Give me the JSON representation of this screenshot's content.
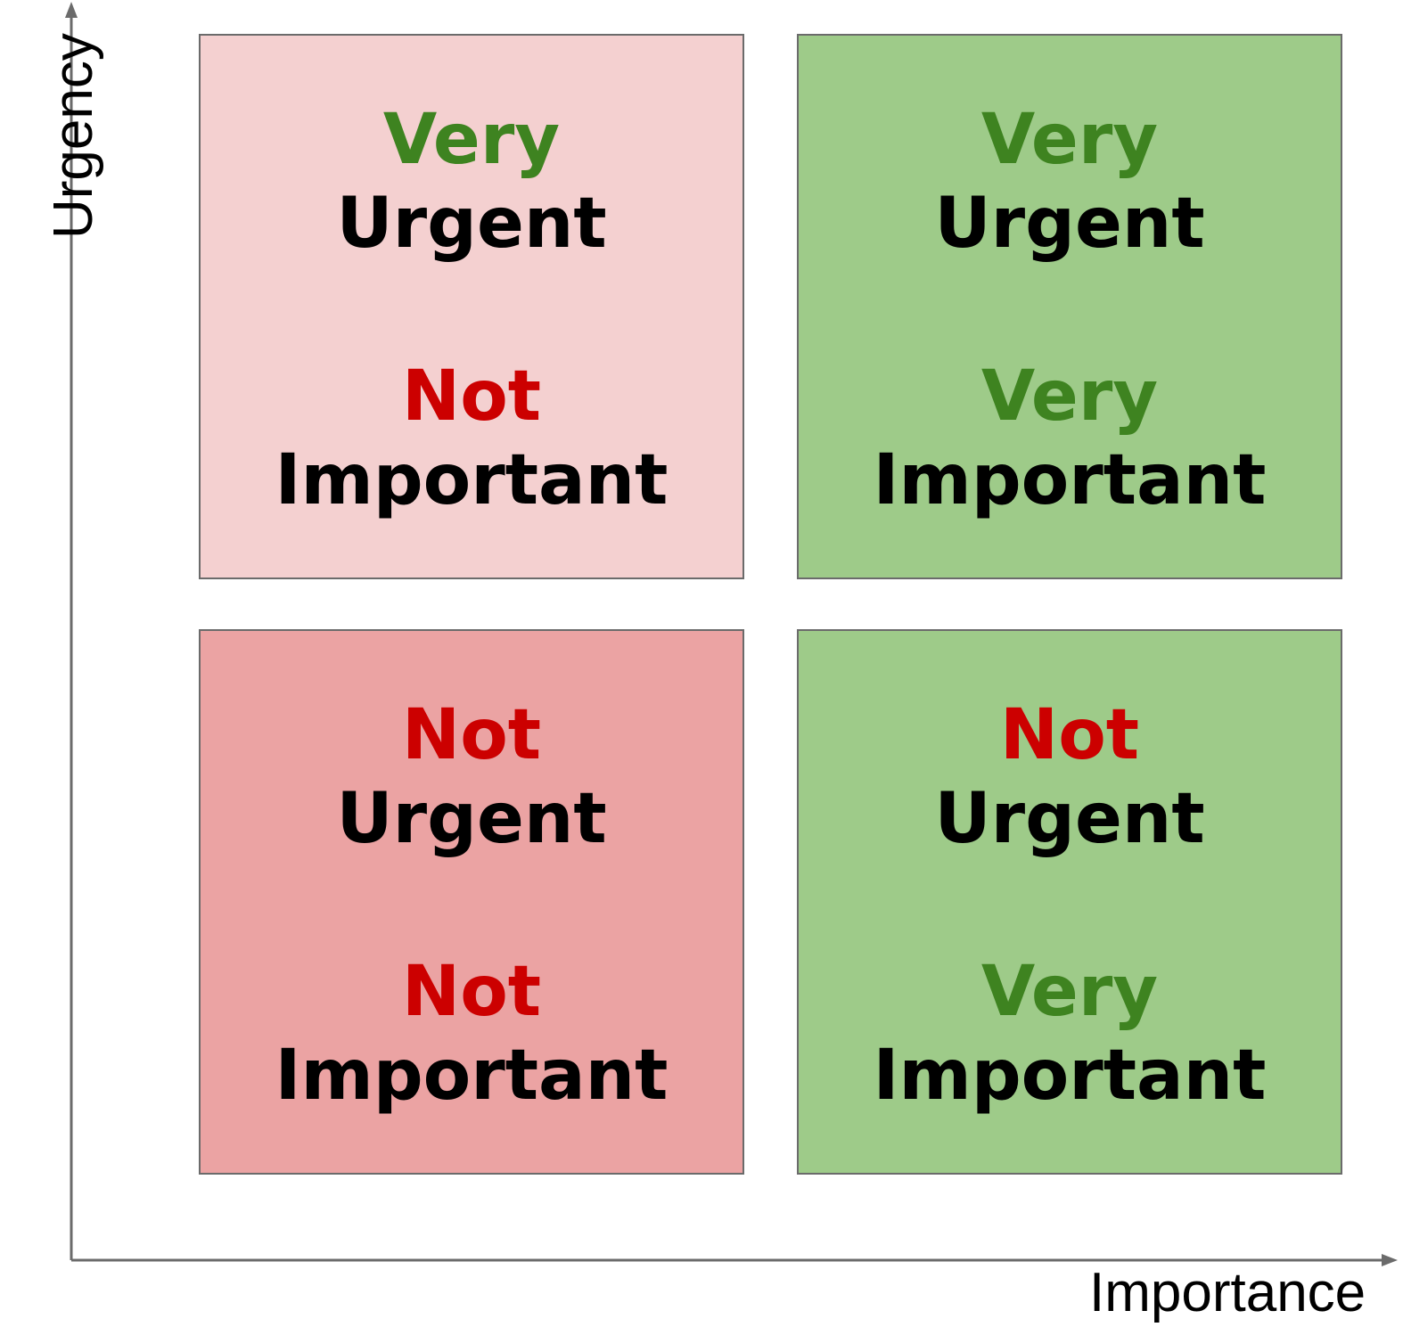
{
  "axes": {
    "x_label": "Importance",
    "y_label": "Urgency",
    "color": "#6b6b6b"
  },
  "colors": {
    "very": "#3e8320",
    "not": "#cc0000",
    "noun": "#000000"
  },
  "quadrants": {
    "top_left": {
      "background": "#f4d0d0",
      "urgency_qualifier": "Very",
      "urgency_word": "Urgent",
      "importance_qualifier": "Not",
      "importance_word": "Important"
    },
    "top_right": {
      "background": "#9ecb89",
      "urgency_qualifier": "Very",
      "urgency_word": "Urgent",
      "importance_qualifier": "Very",
      "importance_word": "Important"
    },
    "bottom_left": {
      "background": "#eba3a3",
      "urgency_qualifier": "Not",
      "urgency_word": "Urgent",
      "importance_qualifier": "Not",
      "importance_word": "Important"
    },
    "bottom_right": {
      "background": "#9ecb89",
      "urgency_qualifier": "Not",
      "urgency_word": "Urgent",
      "importance_qualifier": "Very",
      "importance_word": "Important"
    }
  }
}
